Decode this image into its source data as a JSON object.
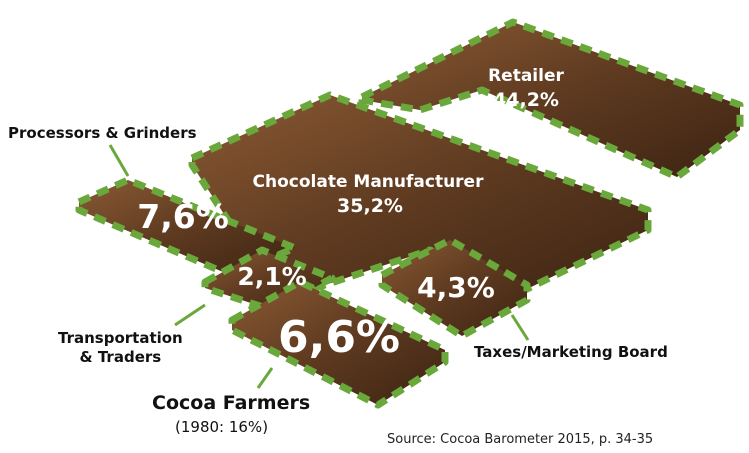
{
  "chart_data": {
    "type": "treemap",
    "unit": "%",
    "segments": [
      {
        "label": "Retailer",
        "value_text": "44,2%",
        "value": 44.2
      },
      {
        "label": "Chocolate Manufacturer",
        "value_text": "35,2%",
        "value": 35.2
      },
      {
        "label": "Processors & Grinders",
        "value_text": "7,6%",
        "value": 7.6
      },
      {
        "label": "Cocoa Farmers",
        "sublabel": "(1980: 16%)",
        "value_text": "6,6%",
        "value": 6.6
      },
      {
        "label": "Taxes/Marketing Board",
        "value_text": "4,3%",
        "value": 4.3
      },
      {
        "label": "Transportation & Traders",
        "label_lines": [
          "Transportation",
          "& Traders"
        ],
        "value_text": "2,1%",
        "value": 2.1
      }
    ],
    "source": "Source: Cocoa Barometer 2015, p. 34-35",
    "colors": {
      "chocolate_dark": "#4a2c17",
      "chocolate_mid": "#6b4226",
      "chocolate_light": "#a57a4f",
      "dash_border": "#6ba83b",
      "text_light": "#ffffff",
      "text_dark": "#111111"
    }
  }
}
